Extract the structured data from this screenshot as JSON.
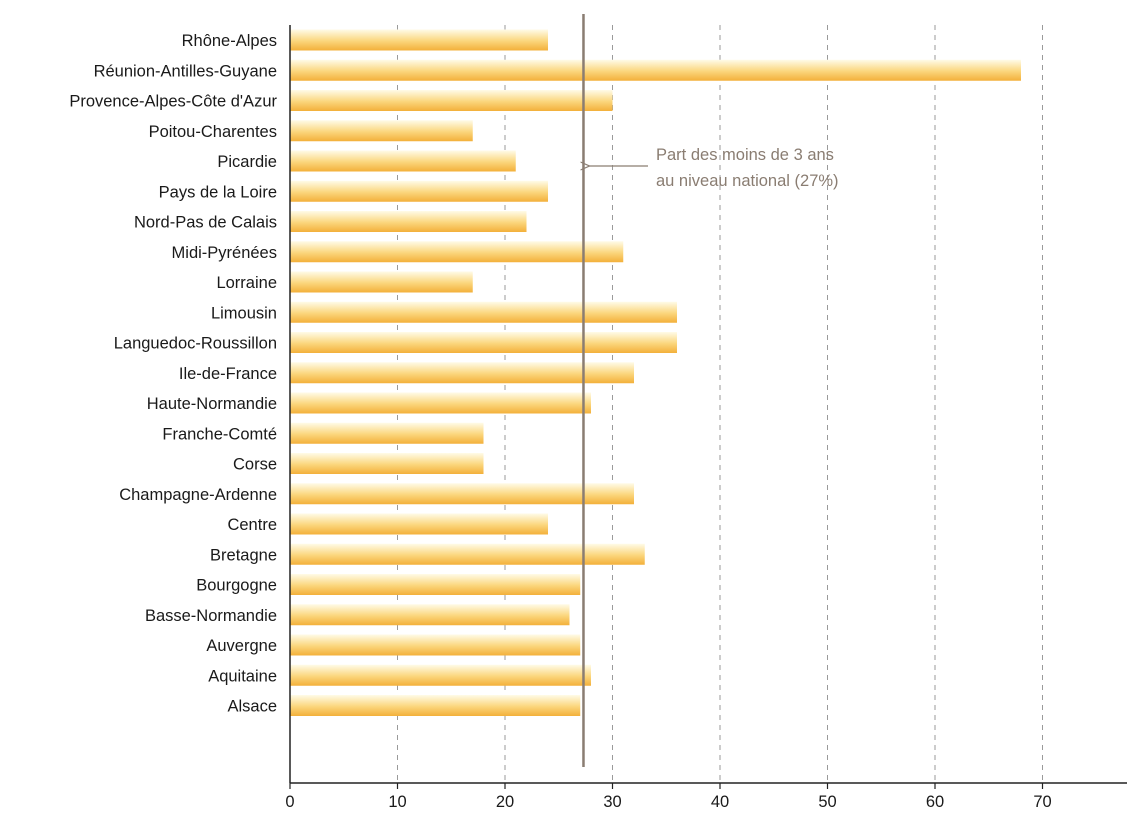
{
  "chart_data": {
    "type": "bar",
    "orientation": "horizontal",
    "categories": [
      "Rhône-Alpes",
      "Réunion-Antilles-Guyane",
      "Provence-Alpes-Côte d'Azur",
      "Poitou-Charentes",
      "Picardie",
      "Pays de la Loire",
      "Nord-Pas de Calais",
      "Midi-Pyrénées",
      "Lorraine",
      "Limousin",
      "Languedoc-Roussillon",
      "Ile-de-France",
      "Haute-Normandie",
      "Franche-Comté",
      "Corse",
      "Champagne-Ardenne",
      "Centre",
      "Bretagne",
      "Bourgogne",
      "Basse-Normandie",
      "Auvergne",
      "Aquitaine",
      "Alsace"
    ],
    "values": [
      24,
      68,
      30,
      17,
      21,
      24,
      22,
      31,
      17,
      36,
      36,
      32,
      28,
      18,
      18,
      32,
      24,
      33,
      27,
      26,
      27,
      28,
      27
    ],
    "xlim": [
      0,
      78
    ],
    "xticks": [
      0,
      10,
      20,
      30,
      40,
      50,
      60,
      70
    ],
    "grid": "vertical dashed",
    "reference_line": {
      "value": 27.3,
      "label_lines": [
        "Part des moins de 3 ans",
        "au niveau national (27%)"
      ]
    },
    "colors": {
      "bar_top": "#fffbe8",
      "bar_bottom": "#f3b03a",
      "reference_line": "#8a7d72",
      "grid": "#9a9a9a",
      "axis": "#222222"
    }
  }
}
